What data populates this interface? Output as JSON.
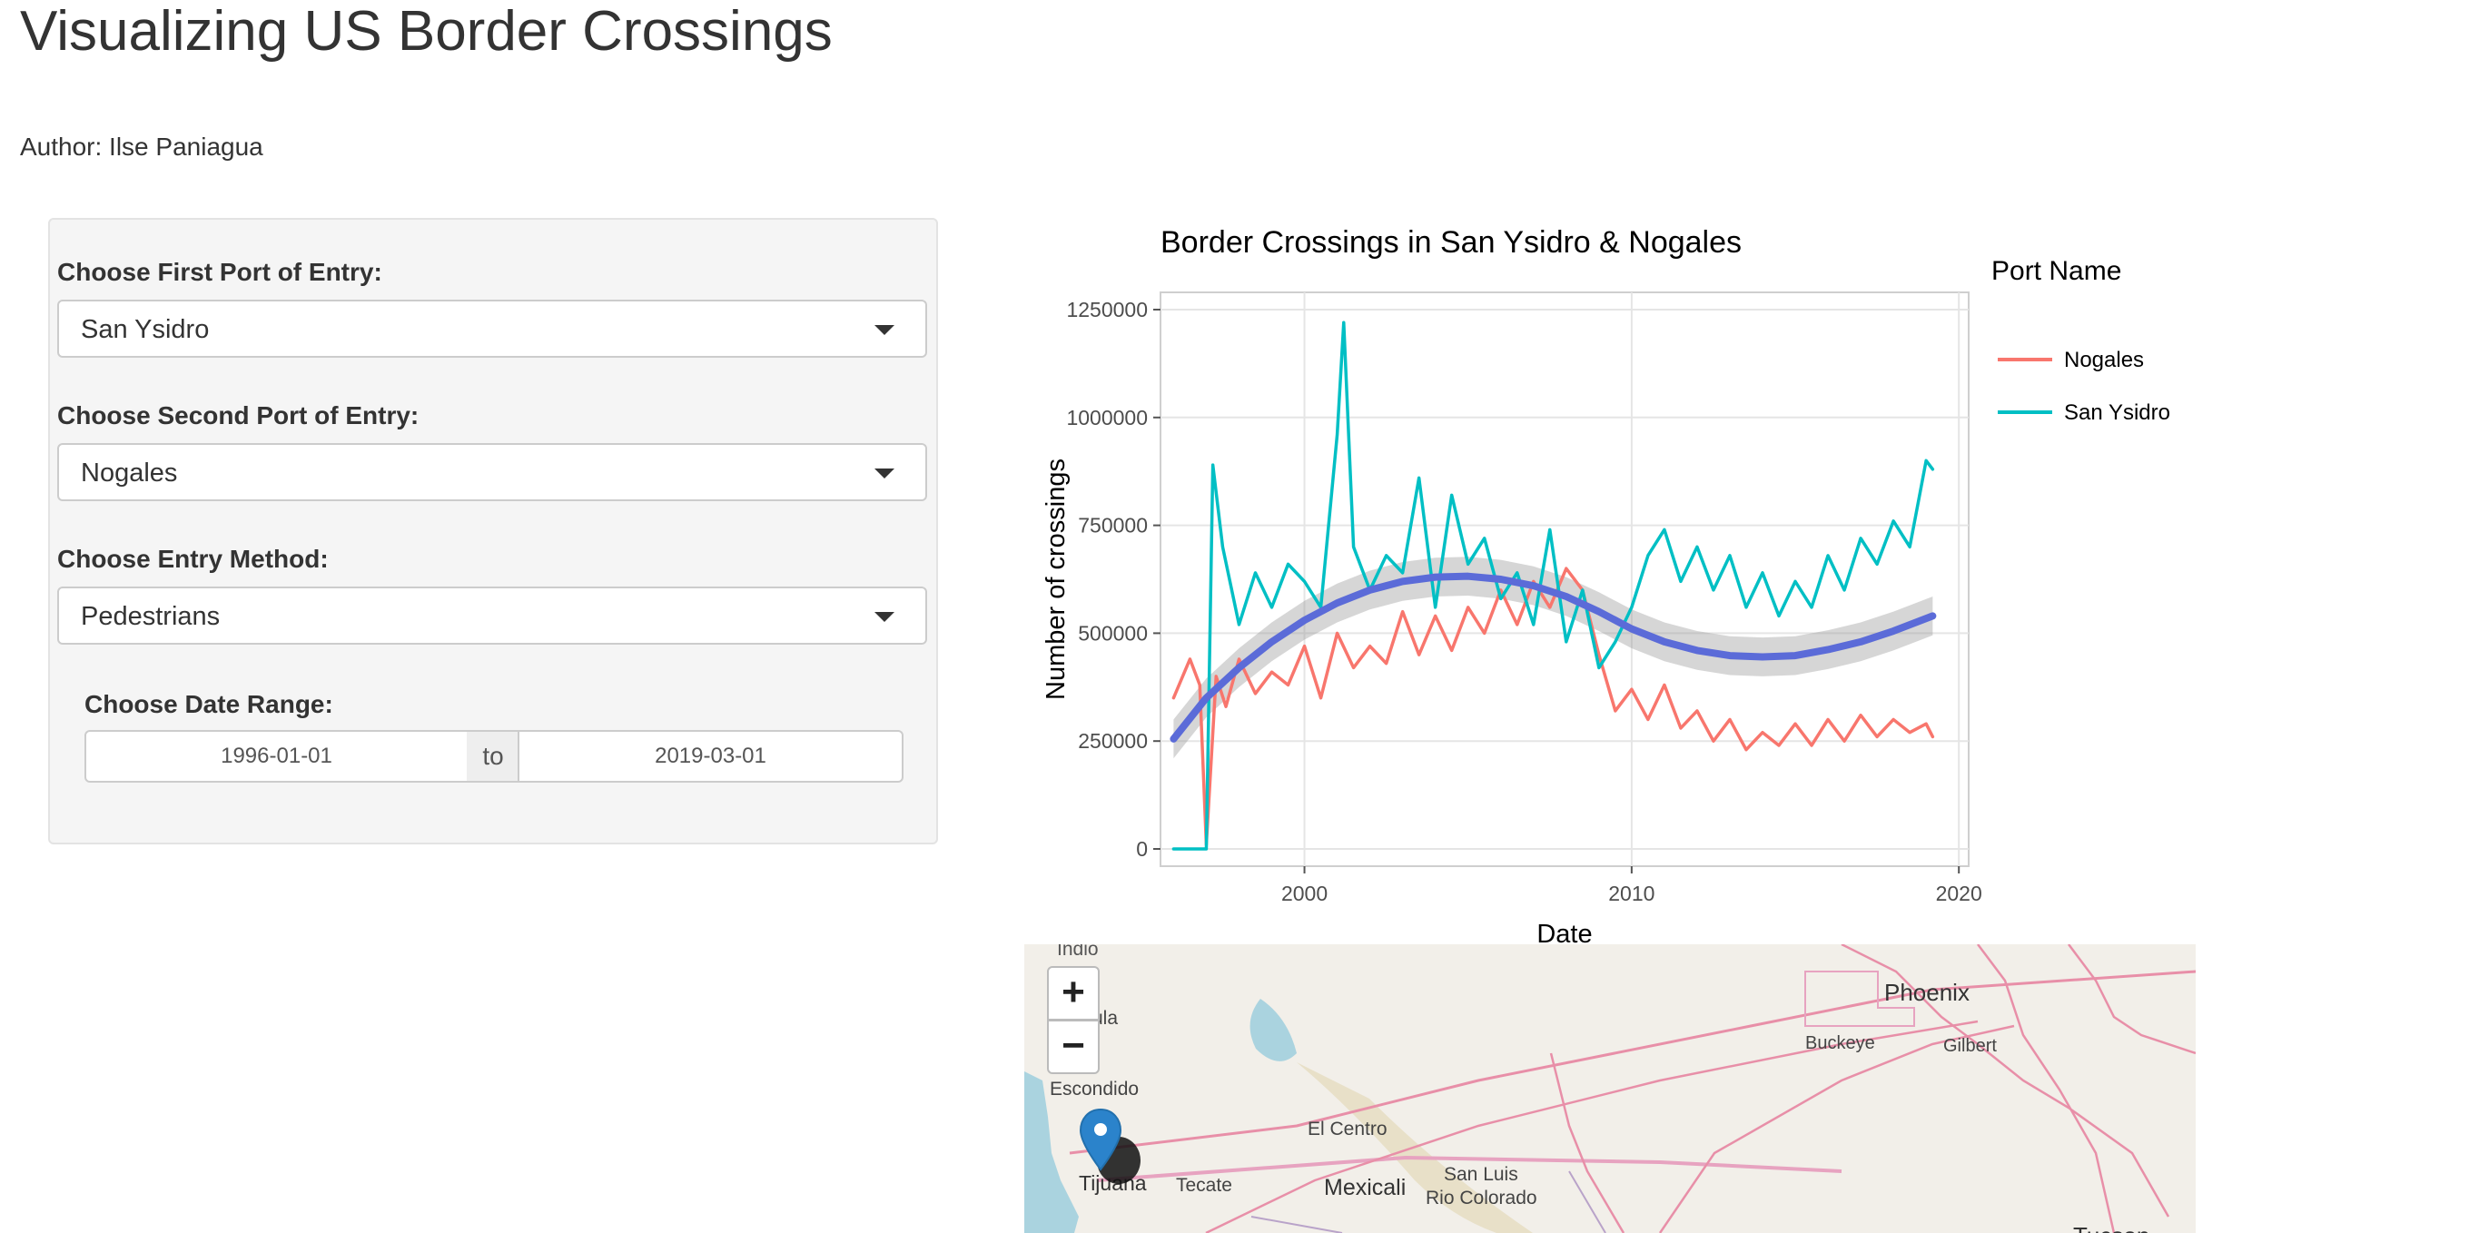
{
  "page": {
    "title": "Visualizing US Border Crossings",
    "author": "Author: Ilse Paniagua"
  },
  "sidebar": {
    "first_port": {
      "label": "Choose First Port of Entry:",
      "value": "San Ysidro"
    },
    "second_port": {
      "label": "Choose Second Port of Entry:",
      "value": "Nogales"
    },
    "entry_method": {
      "label": "Choose Entry Method:",
      "value": "Pedestrians"
    },
    "date_range": {
      "label": "Choose Date Range:",
      "start": "1996-01-01",
      "separator": "to",
      "end": "2019-03-01"
    }
  },
  "chart_data": {
    "type": "line",
    "title": "Border Crossings in San Ysidro & Nogales",
    "xlabel": "Date",
    "ylabel": "Number of crossings",
    "xlim": [
      1995.6,
      2020.3
    ],
    "ylim": [
      -40000,
      1290000
    ],
    "x_ticks": [
      2000,
      2010,
      2020
    ],
    "y_ticks": [
      0,
      250000,
      500000,
      750000,
      1000000,
      1250000
    ],
    "y_tick_labels": [
      "0",
      "250000",
      "500000",
      "750000",
      "1000000",
      "1250000"
    ],
    "legend_title": "Port Name",
    "legend_position": "right",
    "grid": true,
    "series": [
      {
        "name": "Nogales",
        "color": "#f8766d",
        "x": [
          1996.0,
          1996.5,
          1996.8,
          1997.0,
          1997.3,
          1997.6,
          1998.0,
          1998.5,
          1999.0,
          1999.5,
          2000.0,
          2000.5,
          2001.0,
          2001.5,
          2002.0,
          2002.5,
          2003.0,
          2003.5,
          2004.0,
          2004.5,
          2005.0,
          2005.5,
          2006.0,
          2006.5,
          2007.0,
          2007.5,
          2008.0,
          2008.5,
          2009.0,
          2009.5,
          2010.0,
          2010.5,
          2011.0,
          2011.5,
          2012.0,
          2012.5,
          2013.0,
          2013.5,
          2014.0,
          2014.5,
          2015.0,
          2015.5,
          2016.0,
          2016.5,
          2017.0,
          2017.5,
          2018.0,
          2018.5,
          2019.0,
          2019.2
        ],
        "y": [
          350000,
          440000,
          380000,
          10000,
          400000,
          330000,
          440000,
          360000,
          410000,
          380000,
          470000,
          350000,
          500000,
          420000,
          470000,
          430000,
          550000,
          450000,
          540000,
          460000,
          560000,
          500000,
          600000,
          520000,
          620000,
          560000,
          650000,
          600000,
          450000,
          320000,
          370000,
          300000,
          380000,
          280000,
          320000,
          250000,
          300000,
          230000,
          270000,
          240000,
          290000,
          240000,
          300000,
          250000,
          310000,
          260000,
          300000,
          270000,
          290000,
          260000
        ]
      },
      {
        "name": "San Ysidro",
        "color": "#00bfc4",
        "x": [
          1996.0,
          1996.5,
          1997.0,
          1997.2,
          1997.5,
          1998.0,
          1998.5,
          1999.0,
          1999.5,
          2000.0,
          2000.5,
          2001.0,
          2001.2,
          2001.5,
          2002.0,
          2002.5,
          2003.0,
          2003.5,
          2004.0,
          2004.5,
          2005.0,
          2005.5,
          2006.0,
          2006.5,
          2007.0,
          2007.5,
          2008.0,
          2008.5,
          2009.0,
          2009.5,
          2010.0,
          2010.5,
          2011.0,
          2011.5,
          2012.0,
          2012.5,
          2013.0,
          2013.5,
          2014.0,
          2014.5,
          2015.0,
          2015.5,
          2016.0,
          2016.5,
          2017.0,
          2017.5,
          2018.0,
          2018.5,
          2019.0,
          2019.2
        ],
        "y": [
          0,
          0,
          0,
          890000,
          700000,
          520000,
          640000,
          560000,
          660000,
          620000,
          560000,
          960000,
          1220000,
          700000,
          600000,
          680000,
          640000,
          860000,
          560000,
          820000,
          660000,
          720000,
          580000,
          640000,
          520000,
          740000,
          480000,
          600000,
          420000,
          480000,
          560000,
          680000,
          740000,
          620000,
          700000,
          600000,
          680000,
          560000,
          640000,
          540000,
          620000,
          560000,
          680000,
          600000,
          720000,
          660000,
          760000,
          700000,
          900000,
          880000
        ]
      },
      {
        "name": "",
        "color": "#5b6bd8",
        "x": [
          1996.0,
          1997.0,
          1998.0,
          1999.0,
          2000.0,
          2001.0,
          2002.0,
          2003.0,
          2004.0,
          2005.0,
          2006.0,
          2007.0,
          2008.0,
          2009.0,
          2010.0,
          2011.0,
          2012.0,
          2013.0,
          2014.0,
          2015.0,
          2016.0,
          2017.0,
          2018.0,
          2019.2
        ],
        "y": [
          255000,
          350000,
          420000,
          480000,
          530000,
          570000,
          600000,
          620000,
          630000,
          632000,
          625000,
          610000,
          585000,
          550000,
          510000,
          480000,
          460000,
          448000,
          445000,
          448000,
          462000,
          480000,
          505000,
          540000
        ]
      }
    ]
  },
  "map": {
    "labels": [
      "Indio",
      "Phoenix",
      "Buckeye",
      "Gilbert",
      "Escondido",
      "El Centro",
      "San Luis",
      "Rio Colorado",
      "Mexicali",
      "Tecate",
      "Tijuana",
      "Tucson",
      "ula"
    ],
    "zoom_in": "+",
    "zoom_out": "−",
    "marker_icon": "map-pin-icon"
  }
}
